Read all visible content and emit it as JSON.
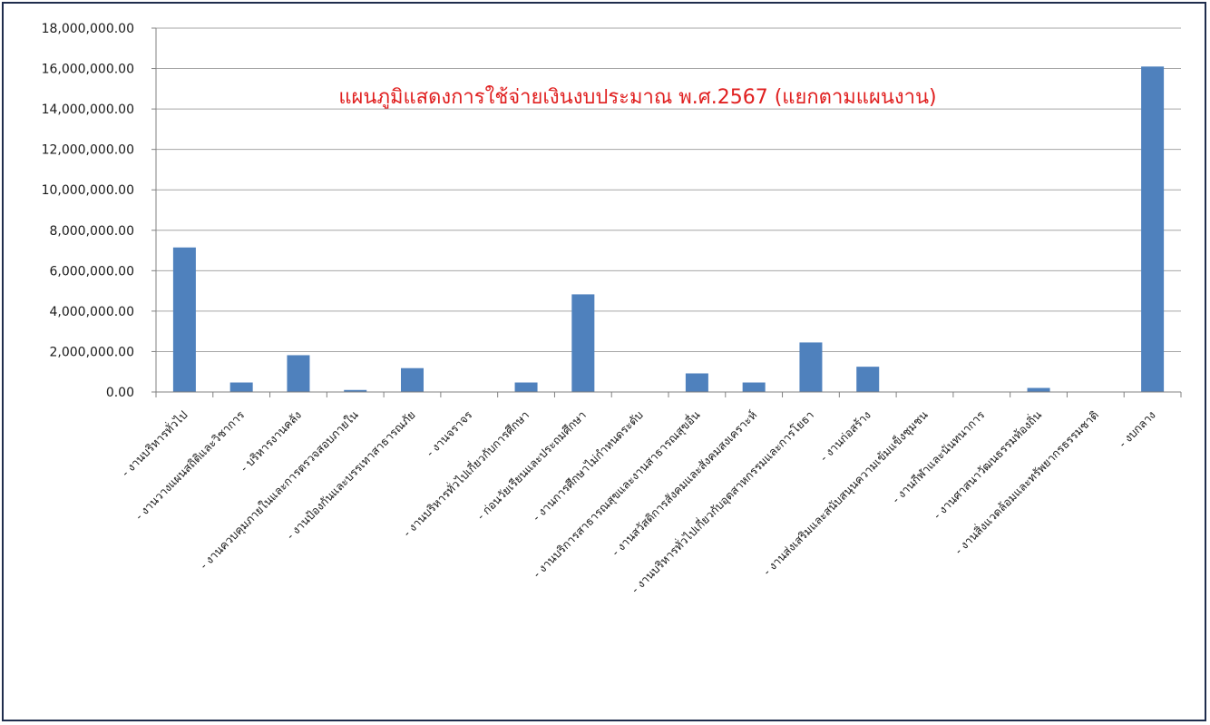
{
  "chart_data": {
    "type": "bar",
    "title": "แผนภูมิแสดงการใช้จ่ายเงินงบประมาณ พ.ศ.2567 (แยกตามแผนงาน)",
    "xlabel": "",
    "ylabel": "",
    "ylim": [
      0,
      18000000
    ],
    "y_ticks": [
      "0.00",
      "2,000,000.00",
      "4,000,000.00",
      "6,000,000.00",
      "8,000,000.00",
      "10,000,000.00",
      "12,000,000.00",
      "14,000,000.00",
      "16,000,000.00",
      "18,000,000.00"
    ],
    "y_tick_values": [
      0,
      2000000,
      4000000,
      6000000,
      8000000,
      10000000,
      12000000,
      14000000,
      16000000,
      18000000
    ],
    "grid": true,
    "legend": "none",
    "categories": [
      "- งานบริหารทั่วไป",
      "- งานวางแผนสถิติและวิชาการ",
      "- บริหารงานคลัง",
      "- งานควบคุมภายในและการตรวจสอบภายใน",
      "- งานป้องกันและบรรเทาสาธารณภัย",
      "- งานจราจร",
      "- งานบริหารทั่วไปเกี่ยวกับการศึกษา",
      "- ก่อนวัยเรียนและประถมศึกษา",
      "- งานการศึกษาไม่กำหนดระดับ",
      "- งานบริการสาธารณสุขและงานสาธารณสุขอื่น",
      "- งานสวัสดิการสังคมและสังคมสงเคราะห์",
      "- งานบริหารทั่วไปเกี่ยวกับอุตสาหกรรมและการโยธา",
      "- งานก่อสร้าง",
      "- งานส่งเสริมและสนับสนุนความเข้มแข็งชุมชน",
      "- งานกีฬาและนันทนาการ",
      "- งานศาสนาวัฒนธรรมท้องถิ่น",
      "- งานสิ่งแวดล้อมและทรัพยากรธรรมชาติ",
      "- งบกลาง"
    ],
    "values": [
      7150000,
      470000,
      1820000,
      100000,
      1180000,
      0,
      470000,
      4830000,
      0,
      920000,
      470000,
      2450000,
      1250000,
      0,
      0,
      200000,
      0,
      16100000
    ],
    "colors": {
      "bar": "#4f81bd",
      "title": "#e02020",
      "grid": "#a6a6a6",
      "axis": "#808080",
      "frame": "#1f2d4d"
    }
  }
}
